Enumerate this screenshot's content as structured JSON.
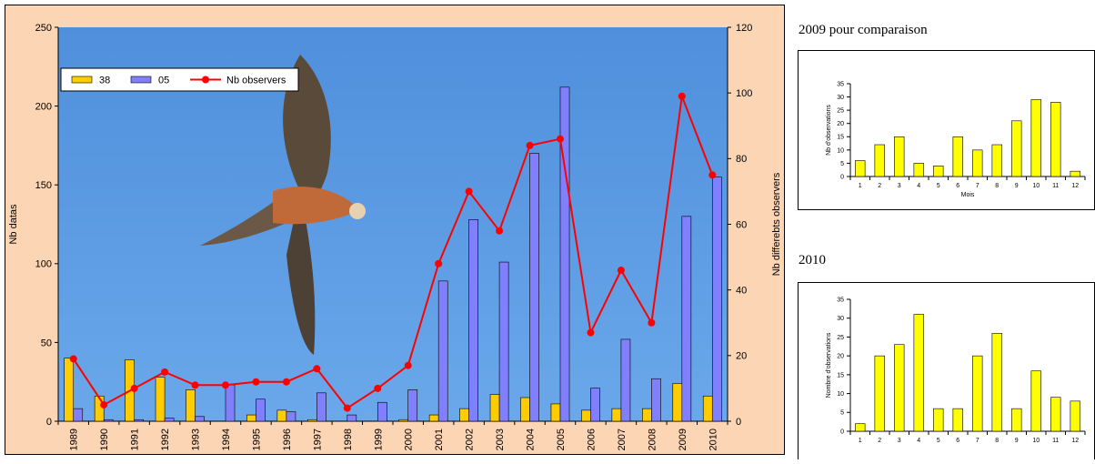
{
  "chart_data": [
    {
      "type": "bar",
      "y_label": "Nb datas",
      "y2_label": "Nb differebts observers",
      "categories": [
        "1989",
        "1990",
        "1991",
        "1992",
        "1993",
        "1994",
        "1995",
        "1996",
        "1997",
        "1998",
        "1999",
        "2000",
        "2001",
        "2002",
        "2003",
        "2004",
        "2005",
        "2006",
        "2007",
        "2008",
        "2009",
        "2010"
      ],
      "series": [
        {
          "name": "38",
          "color": "#ffcc00",
          "values": [
            40,
            16,
            39,
            28,
            20,
            0,
            4,
            7,
            1,
            0,
            0,
            1,
            4,
            8,
            17,
            15,
            11,
            7,
            8,
            8,
            24,
            16
          ]
        },
        {
          "name": "05",
          "color": "#8080ff",
          "values": [
            8,
            1,
            1,
            2,
            3,
            23,
            14,
            6,
            18,
            4,
            12,
            20,
            89,
            128,
            101,
            170,
            212,
            21,
            52,
            27,
            130,
            155
          ]
        },
        {
          "name": "Nb observers",
          "color": "#ff0000",
          "type": "line",
          "axis": "y2",
          "values": [
            19,
            5,
            10,
            15,
            11,
            11,
            12,
            12,
            16,
            4,
            10,
            17,
            48,
            70,
            58,
            84,
            86,
            27,
            46,
            30,
            99,
            75
          ]
        }
      ],
      "ylim": [
        0,
        250
      ],
      "yticks": [
        0,
        50,
        100,
        150,
        200,
        250
      ],
      "y2lim": [
        0,
        120
      ],
      "y2ticks": [
        0,
        20,
        40,
        60,
        80,
        100,
        120
      ],
      "legend": "top-left"
    },
    {
      "type": "bar",
      "title": "2009 pour comparaison",
      "y_label": "Nb d'observations",
      "x_label": "Mois",
      "categories": [
        "1",
        "2",
        "3",
        "4",
        "5",
        "6",
        "7",
        "8",
        "9",
        "10",
        "11",
        "12"
      ],
      "values": [
        6,
        12,
        15,
        5,
        4,
        15,
        10,
        12,
        21,
        29,
        28,
        2
      ],
      "color": "#ffff00",
      "ylim": [
        0,
        35
      ],
      "yticks": [
        0,
        5,
        10,
        15,
        20,
        25,
        30,
        35
      ]
    },
    {
      "type": "bar",
      "title": "2010",
      "y_label": "Nombre d'observations",
      "categories": [
        "1",
        "2",
        "3",
        "4",
        "5",
        "6",
        "7",
        "8",
        "9",
        "10",
        "11",
        "12"
      ],
      "values": [
        2,
        20,
        23,
        31,
        6,
        6,
        20,
        26,
        6,
        16,
        9,
        8
      ],
      "color": "#ffff00",
      "ylim": [
        0,
        35
      ],
      "yticks": [
        0,
        5,
        10,
        15,
        20,
        25,
        30,
        35
      ]
    }
  ]
}
